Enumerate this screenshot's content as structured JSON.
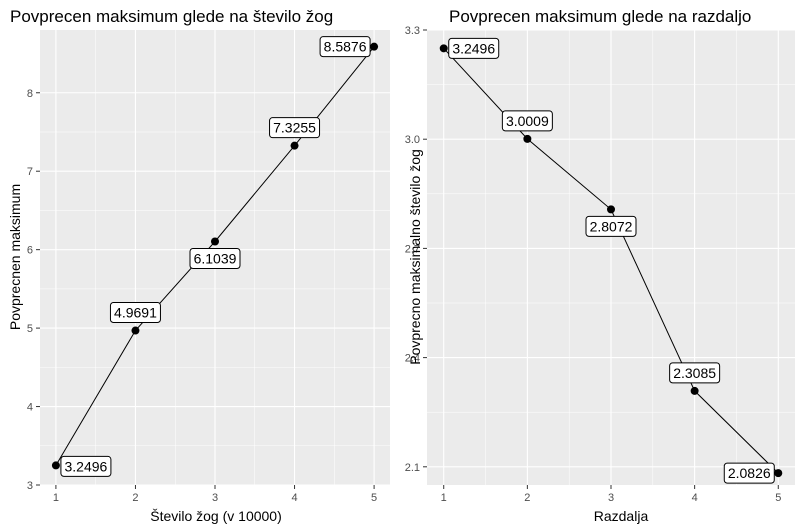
{
  "chart_data": [
    {
      "type": "line",
      "title": "Povprecen maksimum glede na število žog",
      "xlabel": "Število žog (v 10000)",
      "ylabel": "Povprecnen maksimum",
      "x": [
        1,
        2,
        3,
        4,
        5
      ],
      "y": [
        3.2496,
        4.9691,
        6.1039,
        7.3255,
        8.5876
      ],
      "point_labels": [
        "3.2496",
        "4.9691",
        "6.1039",
        "7.3255",
        "8.5876"
      ],
      "label_placement": [
        "below-right",
        "above",
        "below",
        "above",
        "left"
      ],
      "xlim": [
        0.8,
        5.2
      ],
      "ylim": [
        3.0,
        8.8
      ],
      "xticks": [
        1,
        2,
        3,
        4,
        5
      ],
      "yticks": [
        3,
        4,
        5,
        6,
        7,
        8
      ],
      "grid": true
    },
    {
      "type": "line",
      "title": "Povprecen maksimum glede na razdaljo",
      "xlabel": "Razdalja",
      "ylabel": "Povprecno maksimalno število žog",
      "x": [
        1,
        2,
        3,
        4,
        5
      ],
      "y": [
        3.2496,
        3.0009,
        2.8072,
        2.3085,
        2.0826
      ],
      "point_labels": [
        "3.2496",
        "3.0009",
        "2.8072",
        "2.3085",
        "2.0826"
      ],
      "label_placement": [
        "right",
        "above",
        "below",
        "above",
        "left"
      ],
      "xlim": [
        0.8,
        5.2
      ],
      "ylim": [
        2.05,
        3.3
      ],
      "xticks": [
        1,
        2,
        3,
        4,
        5
      ],
      "yticks": [
        "2.1",
        "2.4",
        "2.7",
        "3.0",
        "3.3"
      ],
      "grid": true
    }
  ],
  "colors": {
    "panel": "#ebebeb",
    "grid": "#ffffff",
    "line": "#000000",
    "point": "#000000"
  }
}
